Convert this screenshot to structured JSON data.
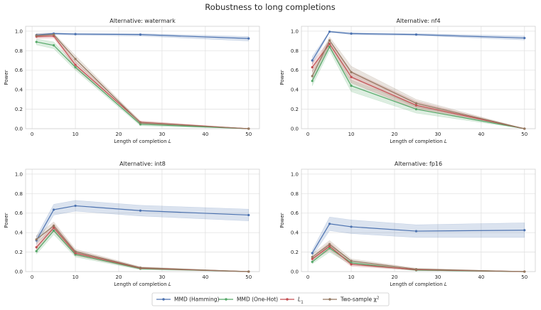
{
  "suptitle": "Robustness to long completions",
  "colors": {
    "MMD (Hamming)": "#4c72b0",
    "MMD (One-Hot)": "#55a868",
    "L1": "#c44e52",
    "Two-sample chi2": "#937860"
  },
  "legend": [
    {
      "key": "MMD (Hamming)",
      "label": "MMD (Hamming)"
    },
    {
      "key": "MMD (One-Hot)",
      "label": "MMD (One-Hot)"
    },
    {
      "key": "L1",
      "label": "L",
      "sub": "1"
    },
    {
      "key": "Two-sample chi2",
      "label": "Two-sample χ",
      "sup": "2"
    }
  ],
  "chart_data": [
    {
      "type": "line",
      "title": "Alternative: watermark",
      "xlabel": "Length of completion",
      "xlabel_var": "L",
      "ylabel": "Power",
      "x": [
        1,
        5,
        10,
        25,
        50
      ],
      "xlim": [
        -1.5,
        52.5
      ],
      "ylim": [
        0,
        1.05
      ],
      "xticks": [
        0,
        10,
        20,
        30,
        40,
        50
      ],
      "yticks": [
        0.0,
        0.2,
        0.4,
        0.6,
        0.8,
        1.0
      ],
      "series": [
        {
          "name": "MMD (Hamming)",
          "values": [
            0.96,
            0.975,
            0.97,
            0.965,
            0.925
          ],
          "lower": [
            0.95,
            0.965,
            0.96,
            0.95,
            0.9
          ],
          "upper": [
            0.975,
            0.985,
            0.98,
            0.975,
            0.945
          ]
        },
        {
          "name": "MMD (One-Hot)",
          "values": [
            0.89,
            0.855,
            0.63,
            0.045,
            0.0
          ],
          "lower": [
            0.86,
            0.82,
            0.6,
            0.03,
            0.0
          ],
          "upper": [
            0.92,
            0.89,
            0.66,
            0.06,
            0.0
          ]
        },
        {
          "name": "L1",
          "values": [
            0.945,
            0.95,
            0.655,
            0.065,
            0.0
          ],
          "lower": [
            0.925,
            0.93,
            0.62,
            0.05,
            0.0
          ],
          "upper": [
            0.965,
            0.97,
            0.69,
            0.08,
            0.0
          ]
        },
        {
          "name": "Two-sample chi2",
          "values": [
            0.955,
            0.965,
            0.715,
            0.06,
            0.0
          ],
          "lower": [
            0.935,
            0.95,
            0.68,
            0.045,
            0.0
          ],
          "upper": [
            0.975,
            0.98,
            0.75,
            0.075,
            0.0
          ]
        }
      ]
    },
    {
      "type": "line",
      "title": "Alternative: nf4",
      "xlabel": "Length of completion",
      "xlabel_var": "L",
      "ylabel": "Power",
      "x": [
        1,
        5,
        10,
        25,
        50
      ],
      "xlim": [
        -1.5,
        52.5
      ],
      "ylim": [
        0,
        1.05
      ],
      "xticks": [
        0,
        10,
        20,
        30,
        40,
        50
      ],
      "yticks": [
        0.0,
        0.2,
        0.4,
        0.6,
        0.8,
        1.0
      ],
      "series": [
        {
          "name": "MMD (Hamming)",
          "values": [
            0.7,
            0.995,
            0.975,
            0.965,
            0.93
          ],
          "lower": [
            0.66,
            0.99,
            0.965,
            0.955,
            0.91
          ],
          "upper": [
            0.74,
            1.0,
            0.985,
            0.975,
            0.95
          ]
        },
        {
          "name": "MMD (One-Hot)",
          "values": [
            0.49,
            0.84,
            0.44,
            0.2,
            0.0
          ],
          "lower": [
            0.44,
            0.8,
            0.38,
            0.16,
            0.0
          ],
          "upper": [
            0.54,
            0.88,
            0.5,
            0.24,
            0.0
          ]
        },
        {
          "name": "L1",
          "values": [
            0.63,
            0.87,
            0.53,
            0.24,
            0.0
          ],
          "lower": [
            0.58,
            0.83,
            0.47,
            0.2,
            0.0
          ],
          "upper": [
            0.68,
            0.91,
            0.59,
            0.28,
            0.0
          ]
        },
        {
          "name": "Two-sample chi2",
          "values": [
            0.54,
            0.905,
            0.58,
            0.26,
            0.0
          ],
          "lower": [
            0.49,
            0.87,
            0.52,
            0.22,
            0.0
          ],
          "upper": [
            0.59,
            0.94,
            0.64,
            0.3,
            0.0
          ]
        }
      ]
    },
    {
      "type": "line",
      "title": "Alternative: int8",
      "xlabel": "Length of completion",
      "xlabel_var": "L",
      "ylabel": "Power",
      "x": [
        1,
        5,
        10,
        25,
        50
      ],
      "xlim": [
        -1.5,
        52.5
      ],
      "ylim": [
        0,
        1.05
      ],
      "xticks": [
        0,
        10,
        20,
        30,
        40,
        50
      ],
      "yticks": [
        0.0,
        0.2,
        0.4,
        0.6,
        0.8,
        1.0
      ],
      "series": [
        {
          "name": "MMD (Hamming)",
          "values": [
            0.32,
            0.635,
            0.675,
            0.625,
            0.58
          ],
          "lower": [
            0.28,
            0.58,
            0.62,
            0.57,
            0.52
          ],
          "upper": [
            0.36,
            0.69,
            0.73,
            0.68,
            0.64
          ]
        },
        {
          "name": "MMD (One-Hot)",
          "values": [
            0.21,
            0.42,
            0.175,
            0.03,
            0.0
          ],
          "lower": [
            0.18,
            0.38,
            0.15,
            0.02,
            0.0
          ],
          "upper": [
            0.24,
            0.46,
            0.2,
            0.04,
            0.0
          ]
        },
        {
          "name": "L1",
          "values": [
            0.25,
            0.45,
            0.19,
            0.035,
            0.0
          ],
          "lower": [
            0.22,
            0.41,
            0.165,
            0.025,
            0.0
          ],
          "upper": [
            0.28,
            0.49,
            0.215,
            0.045,
            0.0
          ]
        },
        {
          "name": "Two-sample chi2",
          "values": [
            0.33,
            0.47,
            0.205,
            0.04,
            0.0
          ],
          "lower": [
            0.29,
            0.43,
            0.18,
            0.03,
            0.0
          ],
          "upper": [
            0.37,
            0.51,
            0.23,
            0.05,
            0.0
          ]
        }
      ]
    },
    {
      "type": "line",
      "title": "Alternative: fp16",
      "xlabel": "Length of completion",
      "xlabel_var": "L",
      "ylabel": "Power",
      "x": [
        1,
        5,
        10,
        25,
        50
      ],
      "xlim": [
        -1.5,
        52.5
      ],
      "ylim": [
        0,
        1.05
      ],
      "xticks": [
        0,
        10,
        20,
        30,
        40,
        50
      ],
      "yticks": [
        0.0,
        0.2,
        0.4,
        0.6,
        0.8,
        1.0
      ],
      "series": [
        {
          "name": "MMD (Hamming)",
          "values": [
            0.19,
            0.49,
            0.46,
            0.415,
            0.425
          ],
          "lower": [
            0.16,
            0.42,
            0.39,
            0.35,
            0.35
          ],
          "upper": [
            0.22,
            0.56,
            0.53,
            0.48,
            0.5
          ]
        },
        {
          "name": "MMD (One-Hot)",
          "values": [
            0.1,
            0.24,
            0.09,
            0.015,
            0.0
          ],
          "lower": [
            0.08,
            0.2,
            0.07,
            0.01,
            0.0
          ],
          "upper": [
            0.12,
            0.28,
            0.11,
            0.025,
            0.0
          ]
        },
        {
          "name": "L1",
          "values": [
            0.13,
            0.26,
            0.075,
            0.02,
            0.0
          ],
          "lower": [
            0.11,
            0.22,
            0.055,
            0.012,
            0.0
          ],
          "upper": [
            0.15,
            0.3,
            0.095,
            0.03,
            0.0
          ]
        },
        {
          "name": "Two-sample chi2",
          "values": [
            0.15,
            0.28,
            0.11,
            0.025,
            0.0
          ],
          "lower": [
            0.12,
            0.24,
            0.09,
            0.015,
            0.0
          ],
          "upper": [
            0.18,
            0.32,
            0.13,
            0.035,
            0.0
          ]
        }
      ]
    }
  ]
}
